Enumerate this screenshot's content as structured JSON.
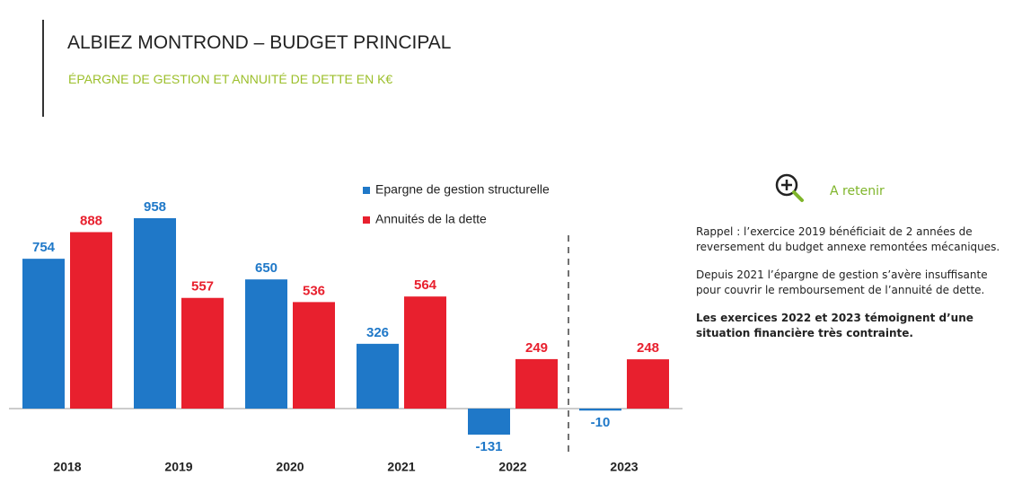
{
  "header": {
    "title": "ALBIEZ MONTROND – BUDGET PRINCIPAL",
    "subtitle": "ÉPARGNE DE GESTION ET ANNUITÉ DE DETTE EN K€"
  },
  "chart_data": {
    "type": "bar",
    "categories": [
      "2018",
      "2019",
      "2020",
      "2021",
      "2022",
      "2023"
    ],
    "series": [
      {
        "name": "Epargne de gestion structurelle",
        "color": "#1f78c8",
        "values": [
          754,
          958,
          650,
          326,
          -131,
          -10
        ]
      },
      {
        "name": "Annuités de la dette",
        "color": "#e8202e",
        "values": [
          888,
          557,
          536,
          564,
          249,
          248
        ]
      }
    ]
  },
  "side": {
    "heading": "A retenir",
    "paragraphs": [
      "Rappel : l’exercice 2019 bénéficiait de 2 années de reversement du budget annexe remontées mécaniques.",
      "Depuis 2021 l’épargne de gestion s’avère insuffisante pour couvrir le remboursement de l’annuité de dette.",
      "Les exercices 2022 et 2023 témoignent d’une situation financière très contrainte."
    ]
  }
}
